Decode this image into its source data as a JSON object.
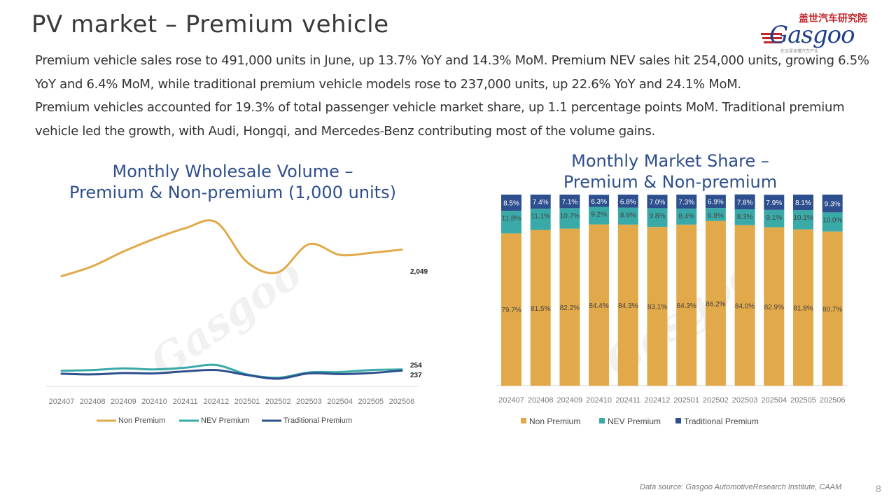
{
  "header": {
    "title": "PV market – Premium vehicle",
    "logo_cn": "盖世汽车研究院",
    "logo_brand": "Gasgoo",
    "logo_slogan": "在这里读懂汽车产业"
  },
  "intro": {
    "p1": "Premium vehicle sales rose to 491,000 units in June, up 13.7% YoY and 14.3% MoM. Premium NEV sales hit 254,000 units, growing 6.5% YoY and 6.4% MoM, while traditional premium vehicle models rose to 237,000 units, up 22.6% YoY and 24.1% MoM.",
    "p2": "Premium vehicles accounted for 19.3% of total passenger vehicle market share, up 1.1 percentage points MoM. Traditional premium vehicle led the growth, with Audi, Hongqi, and Mercedes-Benz contributing most of the volume gains."
  },
  "footer": {
    "source": "Data source: Gasgoo AutomotiveResearch Institute, CAAM",
    "page": "8"
  },
  "watermark": {
    "cn": "盖世汽车",
    "en": "Gasgoo"
  },
  "colors": {
    "non_premium": "#e2a94a",
    "nev_premium": "#3aaaa8",
    "traditional_premium": "#2d4f8e",
    "title": "#2e4f8c"
  },
  "chart_data": [
    {
      "type": "line",
      "title": "Monthly Wholesale Volume – Premium & Non-premium (1,000 units)",
      "title_line1": "Monthly Wholesale Volume –",
      "title_line2": "Premium & Non-premium (1,000 units)",
      "categories": [
        "202407",
        "202408",
        "202409",
        "202410",
        "202411",
        "202412",
        "202501",
        "202502",
        "202503",
        "202504",
        "202505",
        "202506"
      ],
      "ylim": [
        0,
        2600
      ],
      "grid": false,
      "legend": "bottom",
      "series": [
        {
          "name": "Non Premium",
          "color": "#e2a94a",
          "values": [
            1650,
            1800,
            2020,
            2210,
            2370,
            2460,
            1860,
            1710,
            2130,
            1970,
            2000,
            2049
          ],
          "end_label": "2,049"
        },
        {
          "name": "NEV Premium",
          "color": "#3aaaa8",
          "values": [
            235,
            245,
            270,
            255,
            280,
            320,
            180,
            130,
            210,
            215,
            245,
            254
          ],
          "end_label": "254"
        },
        {
          "name": "Traditional Premium",
          "color": "#2d4f8e",
          "values": [
            190,
            180,
            200,
            195,
            225,
            245,
            170,
            115,
            195,
            185,
            200,
            237
          ],
          "end_label": "237"
        }
      ]
    },
    {
      "type": "bar",
      "stacked": true,
      "title": "Monthly Market Share – Premium & Non-premium",
      "title_line1": "Monthly Market Share –",
      "title_line2": "Premium & Non-premium",
      "categories": [
        "202407",
        "202408",
        "202409",
        "202410",
        "202411",
        "202412",
        "202501",
        "202502",
        "202503",
        "202504",
        "202505",
        "202506"
      ],
      "ylim": [
        0,
        100
      ],
      "legend": "bottom",
      "series": [
        {
          "name": "Non Premium",
          "color": "#e2a94a",
          "values": [
            79.7,
            81.5,
            82.2,
            84.4,
            84.3,
            83.1,
            84.3,
            86.2,
            84.0,
            82.9,
            81.8,
            80.7
          ],
          "labels": [
            "79.7%",
            "81.5%",
            "82.2%",
            "84.4%",
            "84.3%",
            "83.1%",
            "84.3%",
            "86.2%",
            "84.0%",
            "82.9%",
            "81.8%",
            "80.7%"
          ]
        },
        {
          "name": "NEV Premium",
          "color": "#3aaaa8",
          "values": [
            11.8,
            11.1,
            10.7,
            9.2,
            8.9,
            9.8,
            8.4,
            6.8,
            8.3,
            9.1,
            10.1,
            10.0
          ],
          "labels": [
            "11.8%",
            "11.1%",
            "10.7%",
            "9.2%",
            "8.9%",
            "9.8%",
            "8.4%",
            "6.8%",
            "8.3%",
            "9.1%",
            "10.1%",
            "10.0%"
          ]
        },
        {
          "name": "Traditional Premium",
          "color": "#2d4f8e",
          "values": [
            8.5,
            7.4,
            7.1,
            6.3,
            6.8,
            7.0,
            7.3,
            6.9,
            7.8,
            7.9,
            8.1,
            9.3
          ],
          "labels": [
            "8.5%",
            "7.4%",
            "7.1%",
            "6.3%",
            "6.8%",
            "7.0%",
            "7.3%",
            "6.9%",
            "7.8%",
            "7.9%",
            "8.1%",
            "9.3%"
          ]
        }
      ]
    }
  ]
}
